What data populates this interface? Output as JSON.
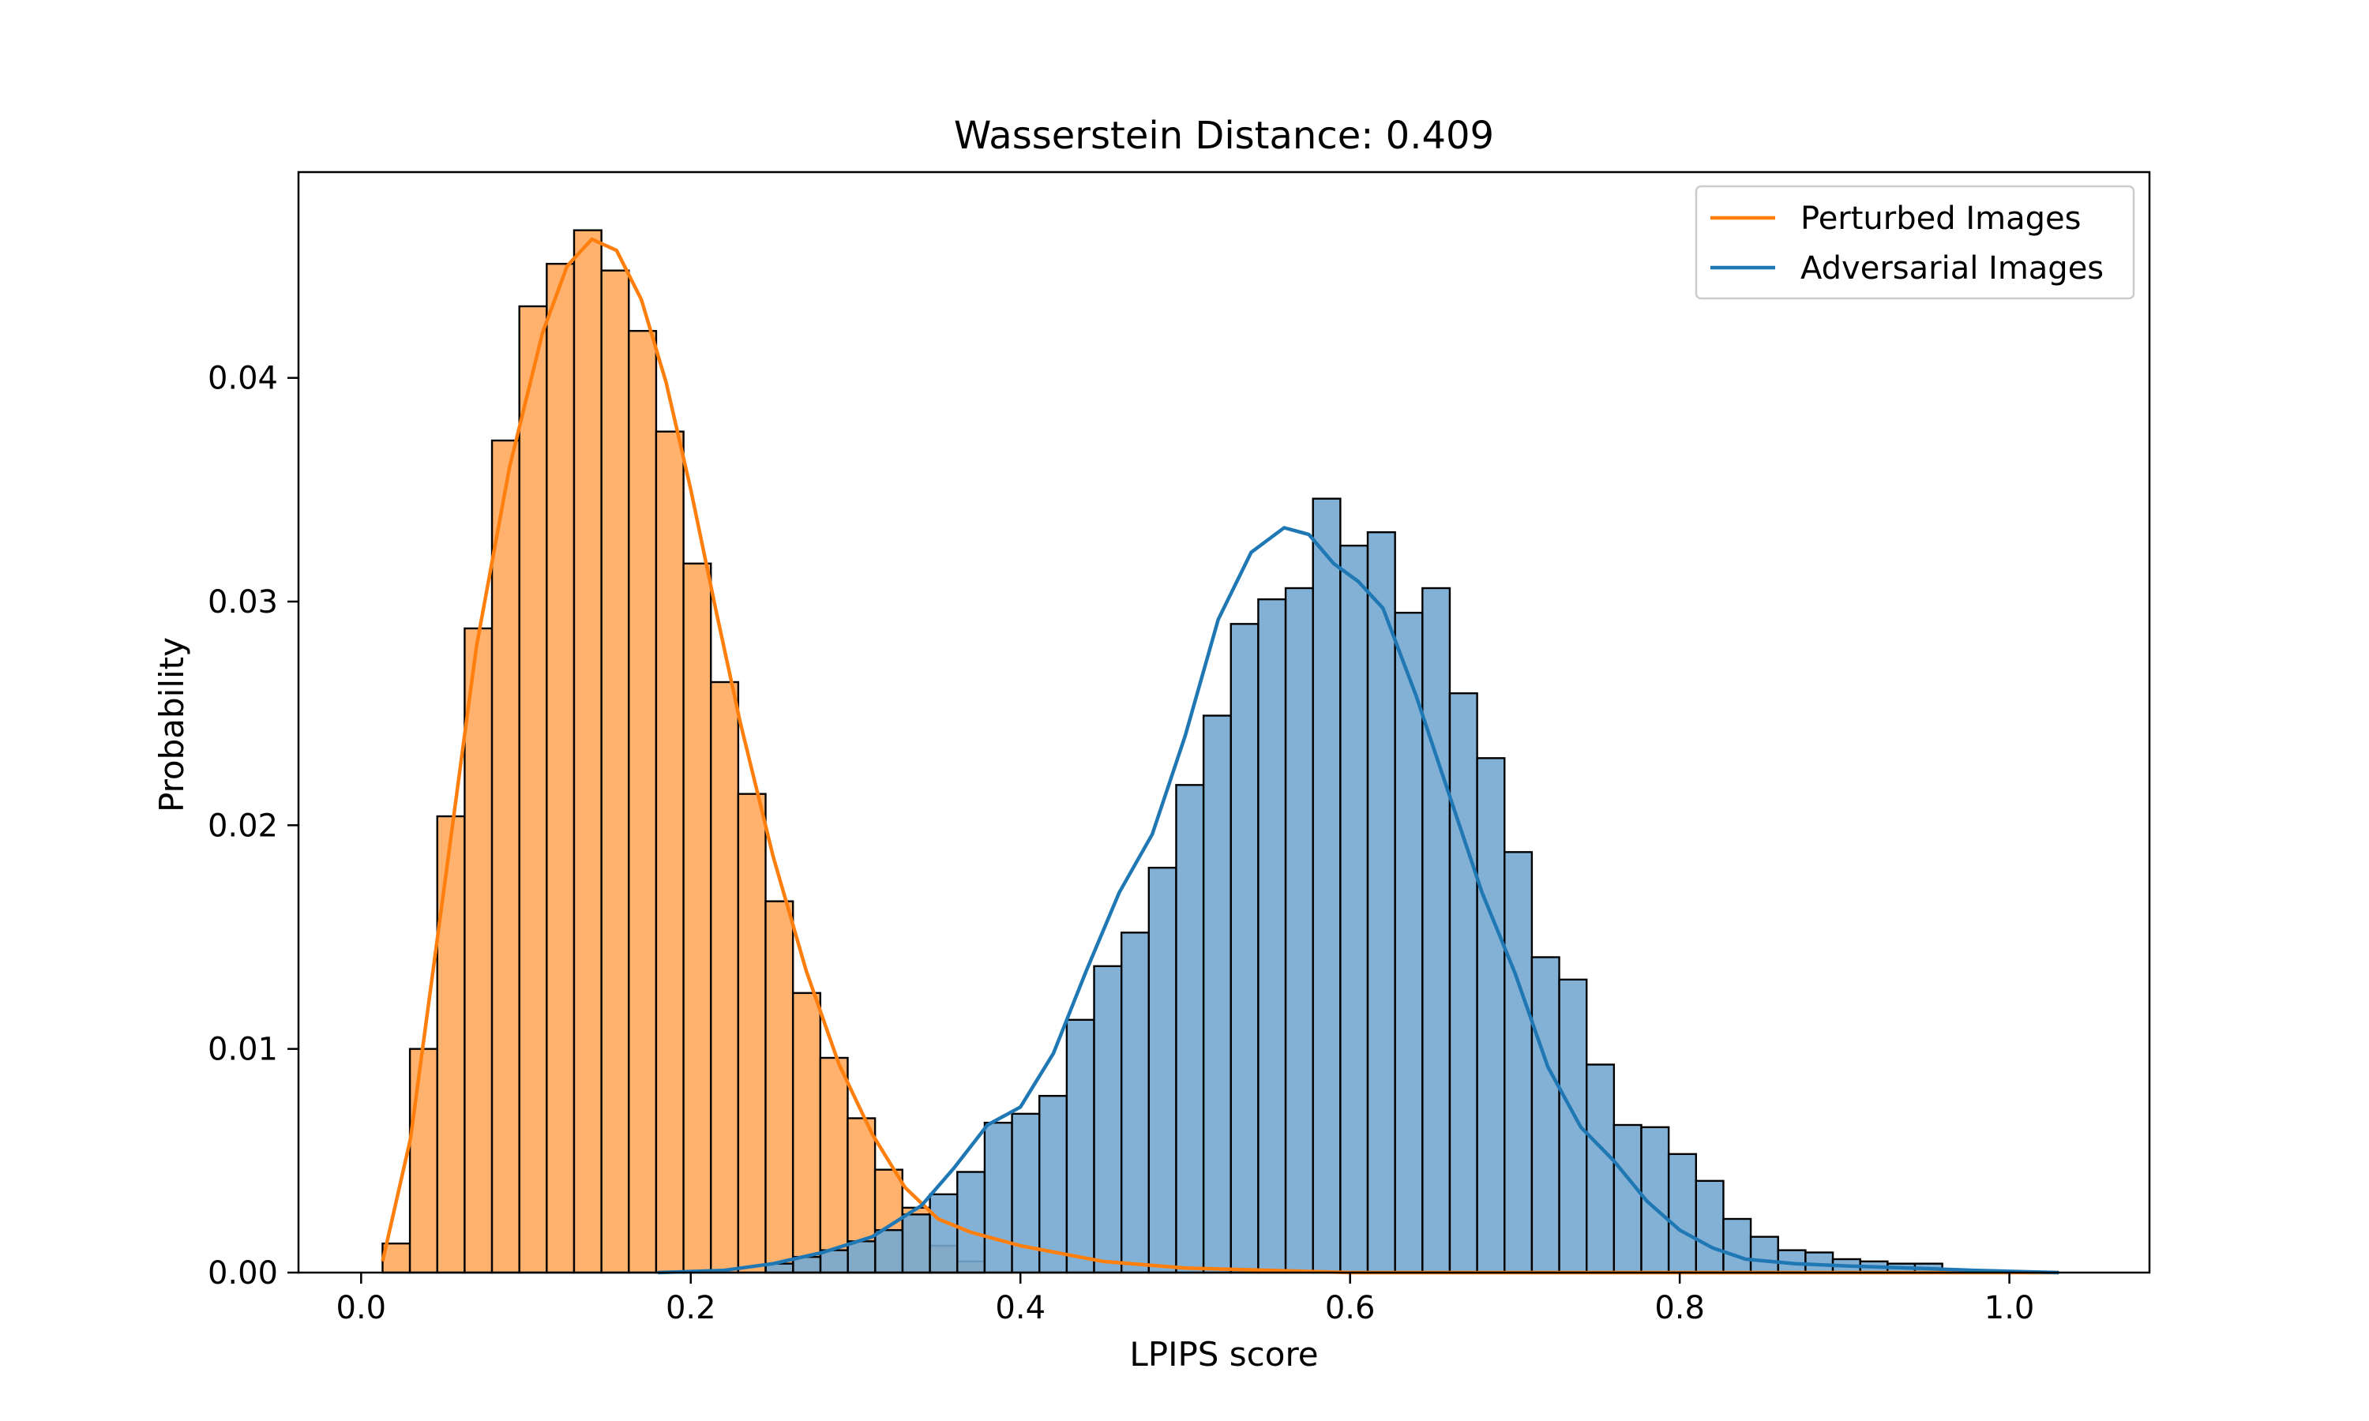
{
  "chart_data": {
    "type": "histogram",
    "title": "Wasserstein Distance: 0.409",
    "xlabel": "LPIPS score",
    "ylabel": "Probability",
    "xlim": [
      -0.038,
      1.085
    ],
    "ylim": [
      0,
      0.0492
    ],
    "x_ticks": [
      0.0,
      0.2,
      0.4,
      0.6,
      0.8,
      1.0
    ],
    "x_tick_labels": [
      "0.0",
      "0.2",
      "0.4",
      "0.6",
      "0.8",
      "1.0"
    ],
    "y_ticks": [
      0.0,
      0.01,
      0.02,
      0.03,
      0.04
    ],
    "y_tick_labels": [
      "0.00",
      "0.01",
      "0.02",
      "0.03",
      "0.04"
    ],
    "legend_position": "top-right",
    "grid": false,
    "series": [
      {
        "name": "Perturbed Images",
        "color": "#ff7f0e",
        "fill": "#ffb26e",
        "bin_start": 0.013,
        "bin_width": 0.0166,
        "values": [
          0.0013,
          0.01,
          0.0204,
          0.0288,
          0.0372,
          0.0432,
          0.0451,
          0.0466,
          0.0448,
          0.0421,
          0.0376,
          0.0317,
          0.0264,
          0.0214,
          0.0166,
          0.0125,
          0.0096,
          0.0069,
          0.0046,
          0.0029,
          0.0012,
          0.0005
        ],
        "kde": [
          [
            0.013,
            0.0005
          ],
          [
            0.03,
            0.006
          ],
          [
            0.05,
            0.017
          ],
          [
            0.07,
            0.028
          ],
          [
            0.09,
            0.036
          ],
          [
            0.11,
            0.042
          ],
          [
            0.125,
            0.045
          ],
          [
            0.14,
            0.0462
          ],
          [
            0.155,
            0.0457
          ],
          [
            0.17,
            0.0435
          ],
          [
            0.185,
            0.0398
          ],
          [
            0.2,
            0.035
          ],
          [
            0.215,
            0.0297
          ],
          [
            0.23,
            0.0246
          ],
          [
            0.25,
            0.0186
          ],
          [
            0.27,
            0.0135
          ],
          [
            0.29,
            0.0093
          ],
          [
            0.31,
            0.0062
          ],
          [
            0.33,
            0.0038
          ],
          [
            0.35,
            0.0024
          ],
          [
            0.37,
            0.0018
          ],
          [
            0.4,
            0.0012
          ],
          [
            0.45,
            0.0005
          ],
          [
            0.5,
            0.0002
          ],
          [
            0.6,
            0.0
          ],
          [
            0.7,
            0.0
          ],
          [
            0.8,
            0.0
          ],
          [
            0.9,
            0.0
          ],
          [
            1.0,
            0.0
          ],
          [
            1.03,
            0.0
          ]
        ]
      },
      {
        "name": "Adversarial Images",
        "color": "#1f77b4",
        "fill": "#76a9d0",
        "bin_start": 0.2455,
        "bin_width": 0.0166,
        "values": [
          0.0004,
          0.0007,
          0.001,
          0.0014,
          0.0019,
          0.0026,
          0.0035,
          0.0045,
          0.0067,
          0.0071,
          0.0079,
          0.0113,
          0.0137,
          0.0152,
          0.0181,
          0.0218,
          0.0249,
          0.029,
          0.0301,
          0.0306,
          0.0346,
          0.0325,
          0.0331,
          0.0295,
          0.0306,
          0.0259,
          0.023,
          0.0188,
          0.0141,
          0.0131,
          0.0093,
          0.0066,
          0.0065,
          0.0053,
          0.0041,
          0.0024,
          0.0016,
          0.001,
          0.0009,
          0.0006,
          0.0005,
          0.0004,
          0.0004,
          0.0001,
          0.0001
        ],
        "kde": [
          [
            0.18,
            0.0
          ],
          [
            0.22,
            0.0001
          ],
          [
            0.25,
            0.0004
          ],
          [
            0.28,
            0.0009
          ],
          [
            0.31,
            0.0016
          ],
          [
            0.34,
            0.003
          ],
          [
            0.36,
            0.0047
          ],
          [
            0.38,
            0.0066
          ],
          [
            0.4,
            0.0074
          ],
          [
            0.42,
            0.0098
          ],
          [
            0.44,
            0.0135
          ],
          [
            0.46,
            0.017
          ],
          [
            0.48,
            0.0196
          ],
          [
            0.5,
            0.024
          ],
          [
            0.52,
            0.0292
          ],
          [
            0.54,
            0.0322
          ],
          [
            0.56,
            0.0333
          ],
          [
            0.575,
            0.033
          ],
          [
            0.59,
            0.0317
          ],
          [
            0.605,
            0.0309
          ],
          [
            0.62,
            0.0297
          ],
          [
            0.64,
            0.0258
          ],
          [
            0.66,
            0.0214
          ],
          [
            0.68,
            0.017
          ],
          [
            0.7,
            0.0134
          ],
          [
            0.72,
            0.0092
          ],
          [
            0.74,
            0.0065
          ],
          [
            0.76,
            0.005
          ],
          [
            0.78,
            0.0032
          ],
          [
            0.8,
            0.0019
          ],
          [
            0.82,
            0.0011
          ],
          [
            0.84,
            0.0006
          ],
          [
            0.87,
            0.0004
          ],
          [
            0.9,
            0.0003
          ],
          [
            0.94,
            0.0002
          ],
          [
            0.98,
            0.0001
          ],
          [
            1.03,
            0.0
          ]
        ]
      }
    ]
  }
}
